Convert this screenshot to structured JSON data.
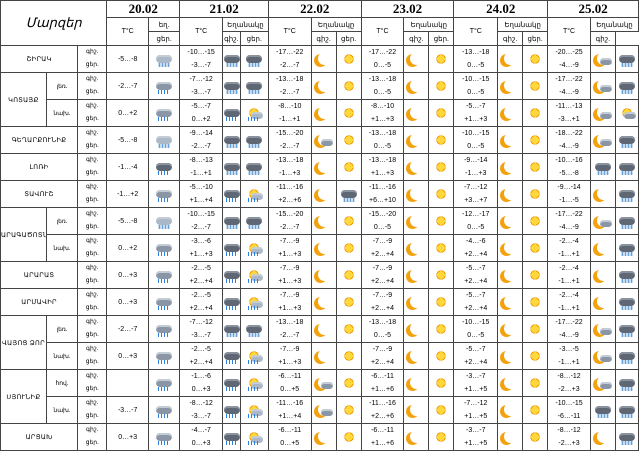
{
  "header": {
    "title": "Մարզեր",
    "dates": [
      "20.02",
      "21.02",
      "22.02",
      "23.02",
      "24.02",
      "25.02"
    ],
    "temp_label": "T°C",
    "weather_label": "Եղանակը",
    "weather_label_short": "եղ.",
    "night_short": "գիշ.",
    "day_short": "ցեր."
  },
  "rows": [
    {
      "region": "ՇԻՐԱԿ",
      "part": "",
      "t20": "-5…-8",
      "t21": "-10…-15|-3…-7",
      "t22": "-17…-22|-2…-7",
      "t23": "-17…-22|0…-5",
      "t24": "-13…-18|0…-5",
      "t25": "-20…-25|-4…-9"
    },
    {
      "region": "ԿՈՏԱՅՔ",
      "part": "լեռ.",
      "t20": "-2…-7",
      "t21": "-7…-12|-3…-7",
      "t22": "-13…-18|-2…-7",
      "t23": "-13…-18|0…-5",
      "t24": "-10…-15|0…-5",
      "t25": "-17…-22|-4…-9"
    },
    {
      "region": "",
      "part": "նախ.",
      "t20": "0…+2",
      "t21": "-5…-7|0…+2",
      "t22": "-8…-10|-1…+1",
      "t23": "-8…-10|+1…+3",
      "t24": "-5…-7|+1…+3",
      "t25": "-11…-13|-3…+1"
    },
    {
      "region": "ԳԵՂԱՐՔՈՒՆԻՔ",
      "part": "",
      "t20": "-5…-8",
      "t21": "-9…-14|-2…-7",
      "t22": "-15…-20|-2…-7",
      "t23": "-13…-18|0…-5",
      "t24": "-10…-15|0…-5",
      "t25": "-18…-22|-4…-9"
    },
    {
      "region": "ԼՈՌԻ",
      "part": "",
      "t20": "-1…-4",
      "t21": "-8…-13|-1…+1",
      "t22": "-13…-18|-1…+3",
      "t23": "-13…-18|+1…+3",
      "t24": "-9…-14|-1…+3",
      "t25": "-10…-16|-5…-8"
    },
    {
      "region": "ՏԱՎՈՒՇ",
      "part": "",
      "t20": "-1…+2",
      "t21": "-5…-10|+1…+4",
      "t22": "-11…-16|+2…+6",
      "t23": "-11…-16|+6…+10",
      "t24": "-7…-12|+3…+7",
      "t25": "-9…-14|-1…-5"
    },
    {
      "region": "ԱՐԱԳԱԾՈՏՆ",
      "part": "լեռ.",
      "t20": "-5…-8",
      "t21": "-10…-15|-2…-7",
      "t22": "-15…-20|-2…-7",
      "t23": "-15…-20|0…-5",
      "t24": "-12…-17|0…-5",
      "t25": "-17…-22|-4…-9"
    },
    {
      "region": "",
      "part": "նախ.",
      "t20": "0…+2",
      "t21": "-3…-6|+1…+3",
      "t22": "-7…-9|+1…+3",
      "t23": "-7…-9|+2…+4",
      "t24": "-4…-6|+2…+4",
      "t25": "-2…-4|-1…+1"
    },
    {
      "region": "ԱՐԱՐԱՏ",
      "part": "",
      "t20": "0…+3",
      "t21": "-2…-5|+2…+4",
      "t22": "-7…-9|+1…+3",
      "t23": "-7…-9|+2…+4",
      "t24": "-5…-7|+2…+4",
      "t25": "-2…-4|-1…+1"
    },
    {
      "region": "ԱՐՄԱՎԻՐ",
      "part": "",
      "t20": "0…+3",
      "t21": "-2…-5|+2…+4",
      "t22": "-7…-9|+1…+3",
      "t23": "-7…-9|+2…+4",
      "t24": "-5…-7|+2…+4",
      "t25": "-2…-4|-1…+1"
    },
    {
      "region": "ՎԱՅՈՑ ՁՈՐ",
      "part": "լեռ.",
      "t20": "-2…-7",
      "t21": "-7…-12|-3…-7",
      "t22": "-13…-18|-2…-7",
      "t23": "-13…-18|0…-5",
      "t24": "-10…-15|0…-5",
      "t25": "-17…-22|-4…-9"
    },
    {
      "region": "",
      "part": "նախ.",
      "t20": "0…+3",
      "t21": "-2…-5|+2…+4",
      "t22": "-7…-9|+1…+3",
      "t23": "-7…-9|+2…+4",
      "t24": "-5…-7|+2…+4",
      "t25": "-3…-5|-1…+1"
    },
    {
      "region": "ՍՅՈՒՆԻՔ",
      "part": "հով.",
      "t20": "",
      "t21": "-1…-6|0…+3",
      "t22": "-6…-11|0…+5",
      "t23": "-6…-11|+1…+6",
      "t24": "-3…-7|+1…+5",
      "t25": "-8…-12|-2…+3"
    },
    {
      "region": "",
      "part": "նախ.",
      "t20": "-3…-7",
      "t21": "-8…-12|-3…-7",
      "t22": "-11…-16|+1…+4",
      "t23": "-11…-16|+2…+6",
      "t24": "-7…-12|+1…+5",
      "t25": "-10…-15|-6…-11"
    },
    {
      "region": "ԱՐՑԱԽ",
      "part": "",
      "t20": "0…+3",
      "t21": "-4…-7|0…+3",
      "t22": "-6…-11|0…+5",
      "t23": "-6…-11|+1…+6",
      "t24": "-3…-7|+1…+5",
      "t25": "-8…-12|-2…+3"
    }
  ]
}
